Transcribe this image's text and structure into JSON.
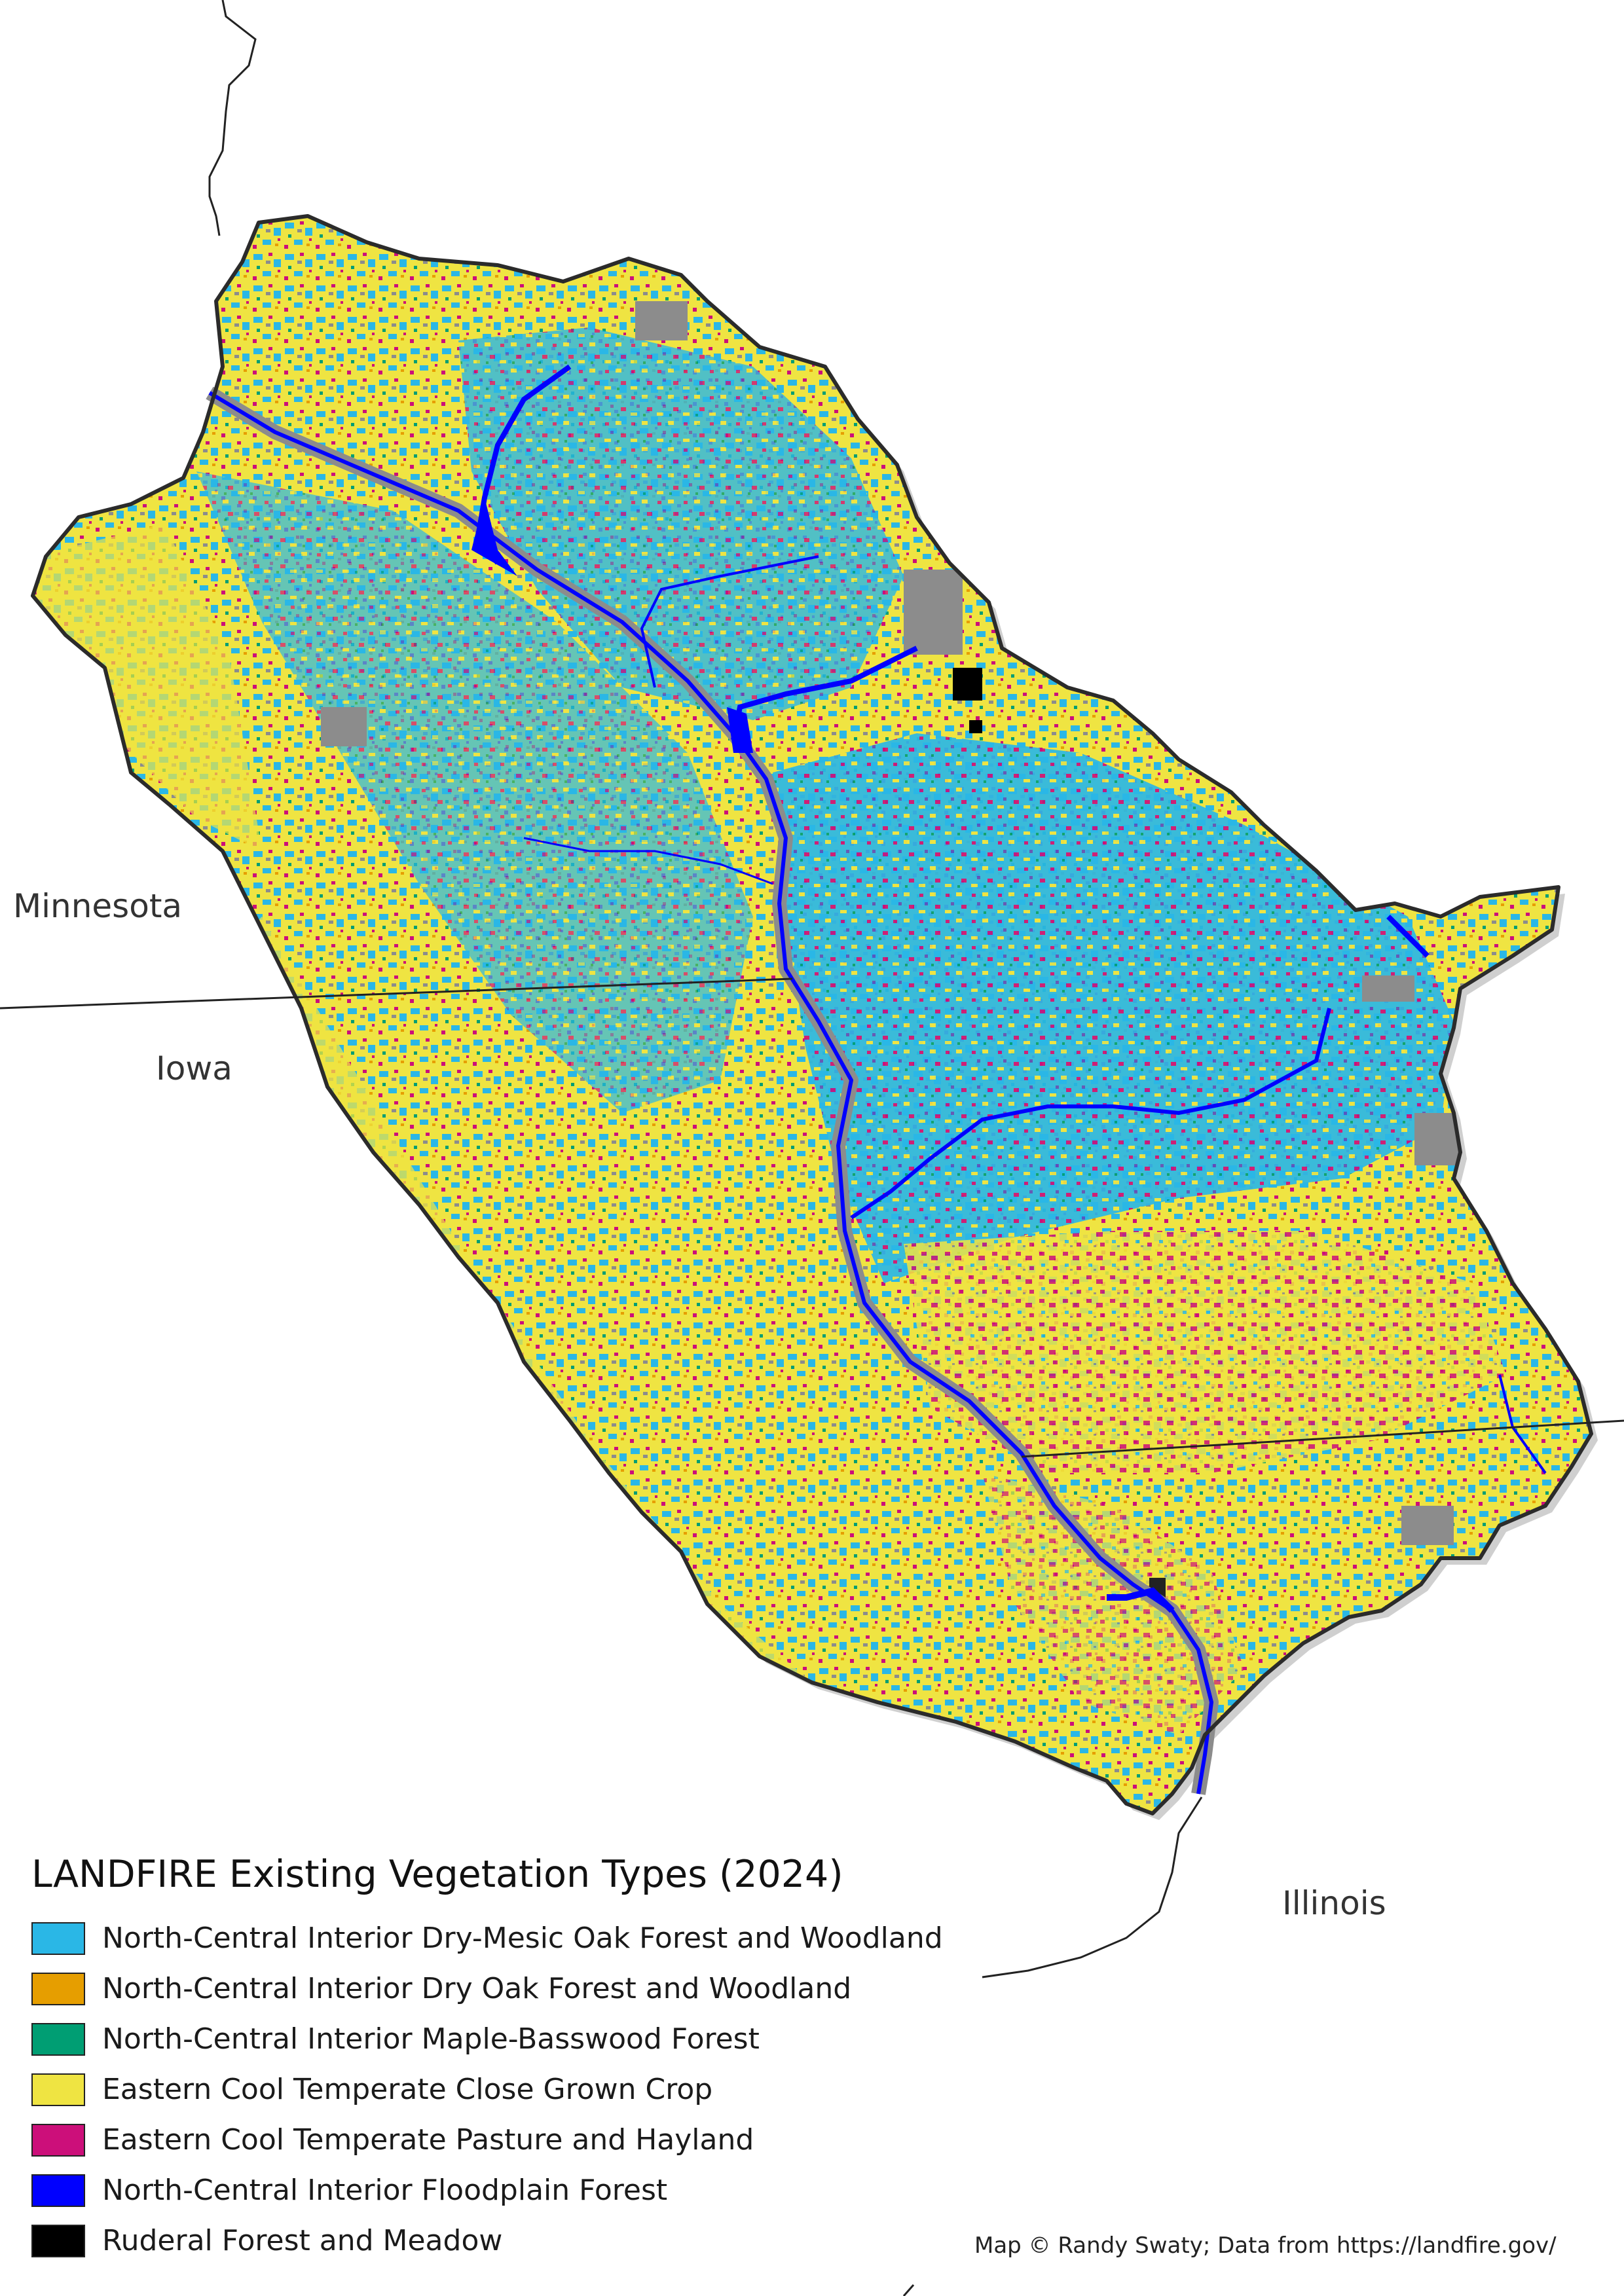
{
  "map": {
    "title": "LANDFIRE Existing Vegetation Types (2024)",
    "credit": "Map © Randy Swaty; Data from https://landfire.gov/",
    "states": {
      "minnesota": "Minnesota",
      "iowa": "Iowa",
      "illinois": "Illinois"
    },
    "colors": {
      "background": "#ffffff",
      "developed_gray": "#8c8c8c",
      "basin_outline": "#2b2b2b",
      "river": "#0000ff"
    }
  },
  "legend": {
    "items": [
      {
        "label": "North-Central Interior Dry-Mesic Oak Forest and Woodland",
        "color": "#2ab7e6"
      },
      {
        "label": "North-Central Interior Dry Oak Forest and Woodland",
        "color": "#e69e00"
      },
      {
        "label": "North-Central Interior Maple-Basswood Forest",
        "color": "#009e73"
      },
      {
        "label": "Eastern Cool Temperate Close Grown Crop",
        "color": "#efe442"
      },
      {
        "label": "Eastern Cool Temperate Pasture and Hayland",
        "color": "#cc0f7a"
      },
      {
        "label": "North-Central Interior Floodplain Forest",
        "color": "#0000ff"
      },
      {
        "label": "Ruderal Forest and Meadow",
        "color": "#000000"
      }
    ]
  }
}
